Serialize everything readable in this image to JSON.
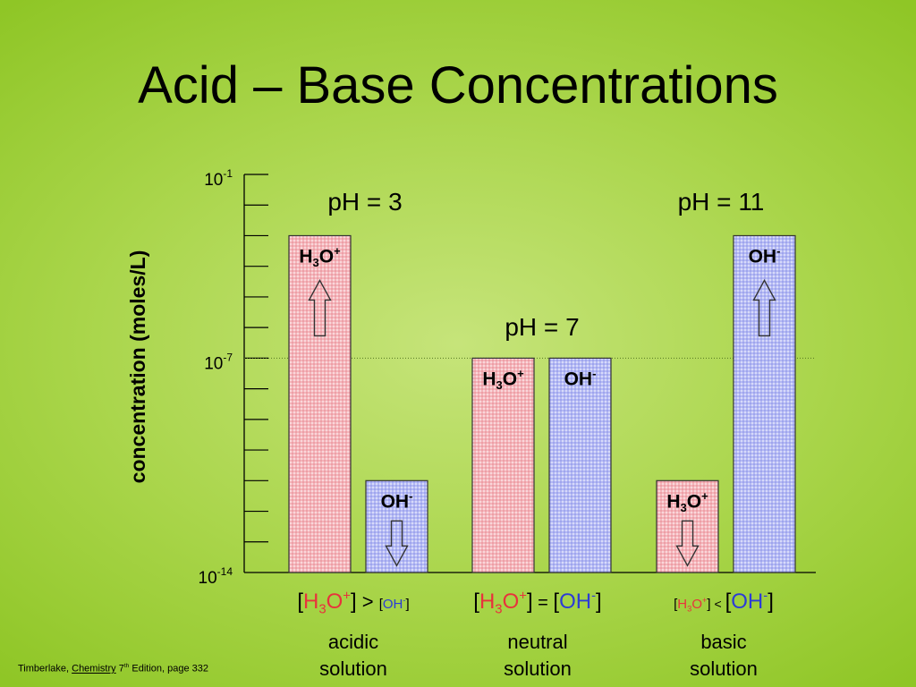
{
  "title": "Acid – Base Concentrations",
  "footer": {
    "author": "Timberlake,",
    "book": "Chemistry",
    "edition_num": "7",
    "edition_sup": "th",
    "edition_rest": "Edition, page 332"
  },
  "colors": {
    "acid_fill": "#f0a0a8",
    "base_fill": "#a8aff0",
    "acid_text": "#e8323c",
    "base_text": "#2b3bd6"
  },
  "chart_data": {
    "type": "bar",
    "ylabel": "concentration (moles/L)",
    "y_scale": "log",
    "ylim": [
      1e-14,
      0.1
    ],
    "y_ticks": [
      {
        "base": "10",
        "exp": "-1",
        "value": 0.1
      },
      {
        "base": "10",
        "exp": "-7",
        "value": 1e-07
      },
      {
        "base": "10",
        "exp": "-14",
        "value": 1e-14
      }
    ],
    "reference_line": 1e-07,
    "groups": [
      {
        "ph": "pH = 3",
        "category": [
          "acidic",
          "solution"
        ],
        "comparison": {
          "left": "H3O+",
          "operator": ">",
          "right": "OH-",
          "larger": "left"
        },
        "bars": [
          {
            "ion": "H3O+",
            "value": 0.001,
            "label_position": "top",
            "arrow": "up"
          },
          {
            "ion": "OH-",
            "value": 1e-11,
            "label_position": "top",
            "arrow": "down"
          }
        ]
      },
      {
        "ph": "pH = 7",
        "category": [
          "neutral",
          "solution"
        ],
        "comparison": {
          "left": "H3O+",
          "operator": "=",
          "right": "OH-",
          "larger": "both"
        },
        "bars": [
          {
            "ion": "H3O+",
            "value": 1e-07,
            "label_position": "top",
            "arrow": "none"
          },
          {
            "ion": "OH-",
            "value": 1e-07,
            "label_position": "top",
            "arrow": "none"
          }
        ]
      },
      {
        "ph": "pH = 11",
        "category": [
          "basic",
          "solution"
        ],
        "comparison": {
          "left": "H3O+",
          "operator": "<",
          "right": "OH-",
          "larger": "right"
        },
        "bars": [
          {
            "ion": "H3O+",
            "value": 1e-11,
            "label_position": "top",
            "arrow": "down"
          },
          {
            "ion": "OH-",
            "value": 0.001,
            "label_position": "top",
            "arrow": "up"
          }
        ]
      }
    ]
  }
}
